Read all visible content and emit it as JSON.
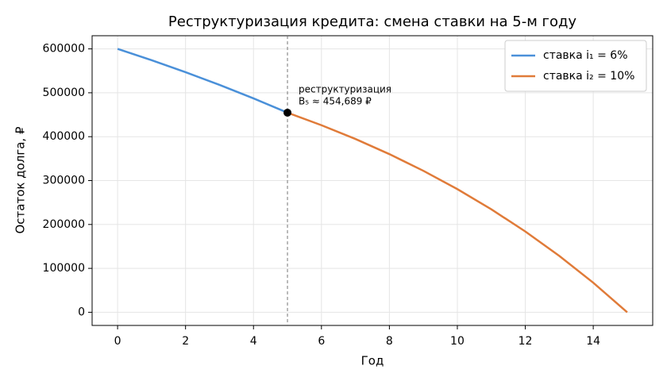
{
  "chart_data": {
    "type": "line",
    "title": "Реструктуризация кредита: смена ставки на 5-м году",
    "x_label": "Год",
    "y_label": "Остаток долга, ₽",
    "series": [
      {
        "name": "ставка i₁ = 6%",
        "color": "#4a90d9",
        "x": [
          0,
          1,
          2,
          3,
          4,
          5
        ],
        "values": [
          600000,
          574222,
          546897,
          517933,
          487231,
          454689
        ]
      },
      {
        "name": "ставка i₂ = 10%",
        "color": "#e07b39",
        "x": [
          5,
          6,
          7,
          8,
          9,
          10,
          11,
          12,
          13,
          14,
          15
        ],
        "values": [
          454689,
          426160,
          394778,
          360258,
          322286,
          280517,
          234571,
          184030,
          128435,
          67281,
          0
        ]
      }
    ],
    "annotation": {
      "x": 5,
      "y": 454689,
      "title": "реструктуризация",
      "label": "B₅ ≈ 454,689 ₽"
    },
    "xlim": [
      -0.75,
      15.75
    ],
    "xticks": [
      0,
      2,
      4,
      6,
      8,
      10,
      12,
      14
    ],
    "ylim": [
      -30000,
      630000
    ],
    "yticks": [
      0,
      100000,
      200000,
      300000,
      400000,
      500000,
      600000
    ],
    "grid": true,
    "legend": "upper right"
  }
}
